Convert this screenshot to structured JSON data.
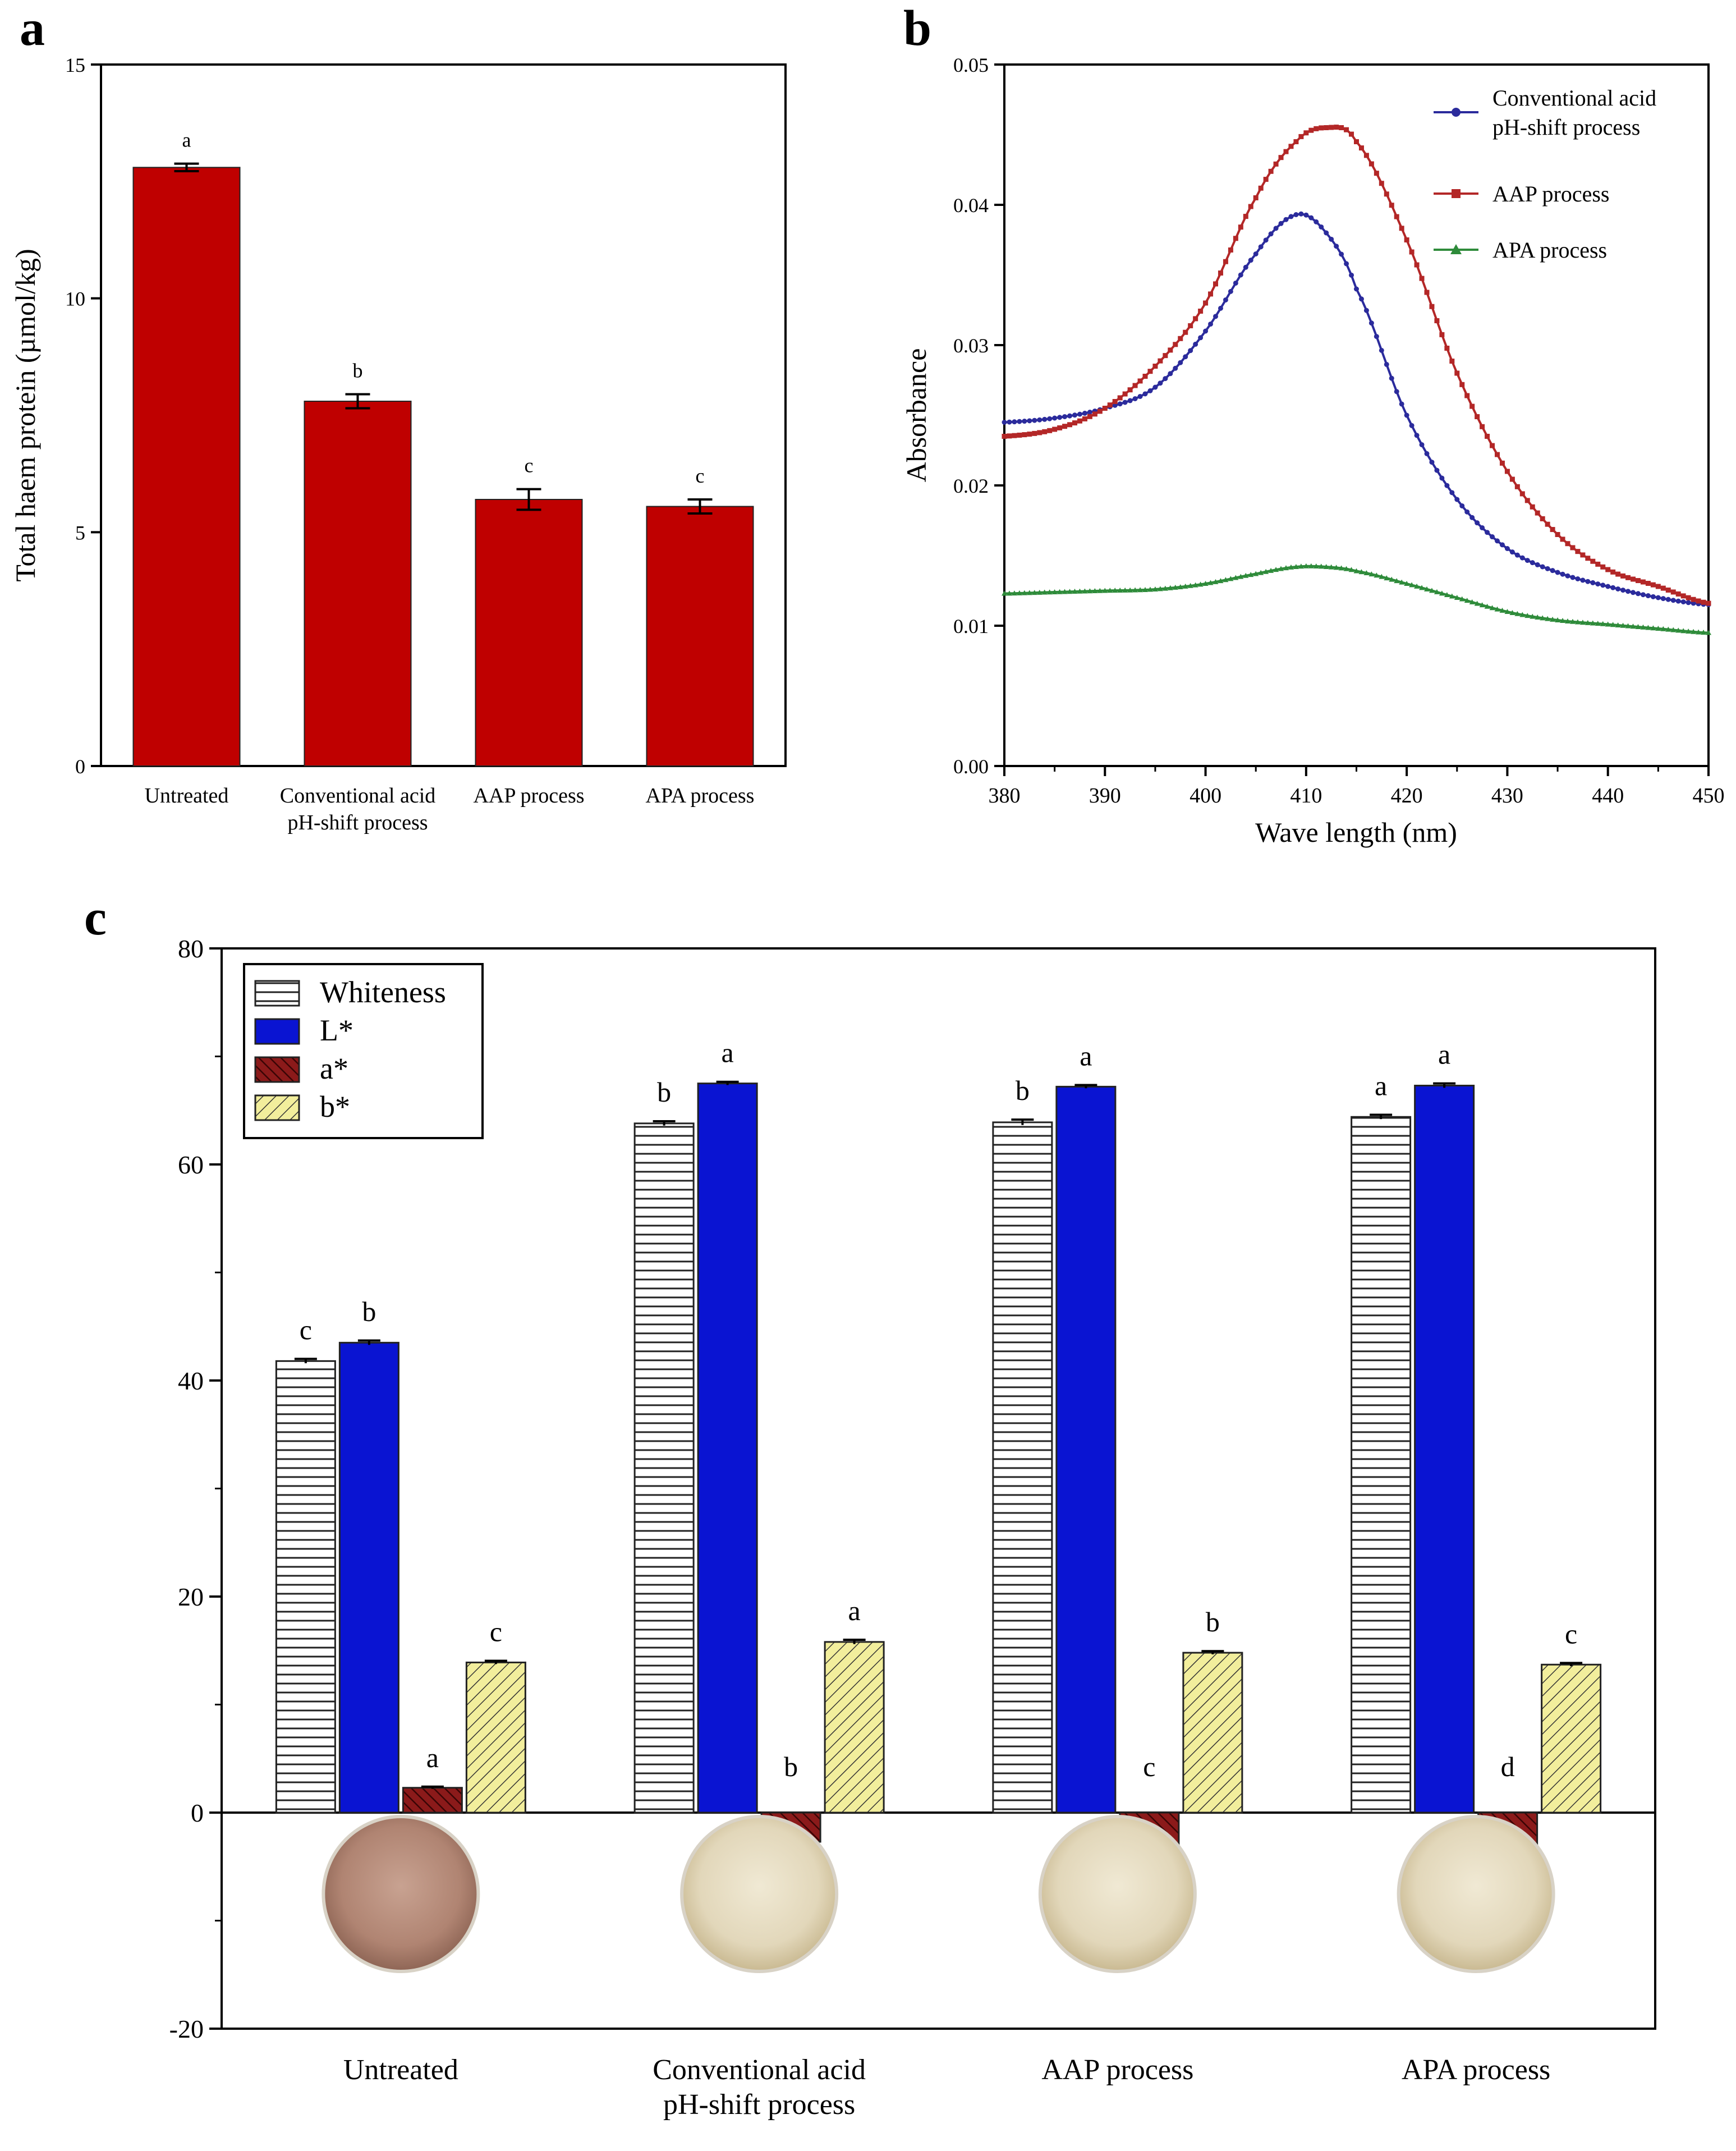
{
  "figure": {
    "panel_labels": [
      "a",
      "b",
      "c"
    ]
  },
  "colors": {
    "red_bar": "#bf0000",
    "blue_line": "#2b2b9c",
    "red_line": "#b32727",
    "green_line": "#2e8b3a",
    "L_bar": "#0a14d2",
    "a_bar": "#8b1a1a",
    "b_bar": "#f2ee9c",
    "sample_untreated": "#b58a78",
    "sample_treated": "#e6dcc2"
  },
  "chart_data": [
    {
      "id": "a",
      "type": "bar",
      "ylabel": "Total haem protein (µmol/kg)",
      "ylim": [
        0,
        15
      ],
      "yticks": [
        0,
        5,
        10,
        15
      ],
      "categories": [
        "Untreated",
        "Conventional acid pH-shift process",
        "AAP process",
        "APA process"
      ],
      "category_lines": [
        [
          "Untreated"
        ],
        [
          "Conventional acid",
          "pH-shift process"
        ],
        [
          "AAP process"
        ],
        [
          "APA process"
        ]
      ],
      "values": [
        12.8,
        7.8,
        5.7,
        5.55
      ],
      "errors": [
        0.08,
        0.15,
        0.22,
        0.15
      ],
      "significance": [
        "a",
        "b",
        "c",
        "c"
      ]
    },
    {
      "id": "b",
      "type": "line",
      "xlabel": "Wave length (nm)",
      "ylabel": "Absorbance",
      "xlim": [
        380,
        450
      ],
      "ylim": [
        0,
        0.05
      ],
      "xticks": [
        380,
        390,
        400,
        410,
        420,
        430,
        440,
        450
      ],
      "yticks": [
        "0.00",
        "0.01",
        "0.02",
        "0.03",
        "0.04",
        "0.05"
      ],
      "legend_position": "top-right",
      "x": [
        380,
        385,
        390,
        395,
        400,
        405,
        409,
        412,
        415,
        420,
        425,
        430,
        435,
        440,
        445,
        450
      ],
      "series": [
        {
          "name": "Conventional acid pH-shift process",
          "legend_lines": [
            "Conventional acid",
            "pH-shift process"
          ],
          "color_key": "blue_line",
          "values": [
            0.0245,
            0.0248,
            0.0255,
            0.027,
            0.031,
            0.0365,
            0.0393,
            0.038,
            0.034,
            0.025,
            0.019,
            0.0155,
            0.0138,
            0.0128,
            0.012,
            0.0115
          ]
        },
        {
          "name": "AAP process",
          "legend_lines": [
            "AAP process"
          ],
          "color_key": "red_line",
          "values": [
            0.0235,
            0.024,
            0.0255,
            0.0285,
            0.033,
            0.0405,
            0.0445,
            0.0455,
            0.0445,
            0.0375,
            0.028,
            0.021,
            0.0165,
            0.014,
            0.0128,
            0.0116
          ]
        },
        {
          "name": "APA process",
          "legend_lines": [
            "APA process"
          ],
          "color_key": "green_line",
          "values": [
            0.0123,
            0.0124,
            0.0125,
            0.0126,
            0.013,
            0.0137,
            0.0142,
            0.0142,
            0.0139,
            0.013,
            0.012,
            0.011,
            0.0104,
            0.0101,
            0.0098,
            0.0095
          ]
        }
      ]
    },
    {
      "id": "c",
      "type": "bar",
      "ylim": [
        -20,
        80
      ],
      "yticks": [
        -20,
        0,
        20,
        40,
        60,
        80
      ],
      "categories": [
        "Untreated",
        "Conventional acid pH-shift process",
        "AAP process",
        "APA process"
      ],
      "category_lines": [
        [
          "Untreated"
        ],
        [
          "Conventional acid",
          "pH-shift process"
        ],
        [
          "AAP process"
        ],
        [
          "APA process"
        ]
      ],
      "legend_position": "top-left",
      "series": [
        {
          "name": "Whiteness",
          "fill": "horizontal-stripes",
          "values": [
            41.8,
            63.8,
            63.9,
            64.4
          ],
          "errors": [
            0.2,
            0.2,
            0.25,
            0.2
          ],
          "significance": [
            "c",
            "b",
            "b",
            "a"
          ]
        },
        {
          "name": "L*",
          "fill": "solid-blue",
          "values": [
            43.5,
            67.5,
            67.2,
            67.3
          ],
          "errors": [
            0.2,
            0.15,
            0.15,
            0.2
          ],
          "significance": [
            "b",
            "a",
            "a",
            "a"
          ]
        },
        {
          "name": "a*",
          "fill": "hatch-red",
          "values": [
            2.3,
            -2.7,
            -3.2,
            -3.3
          ],
          "errors": [
            0.1,
            0.1,
            0.1,
            0.1
          ],
          "significance": [
            "a",
            "b",
            "c",
            "d"
          ]
        },
        {
          "name": "b*",
          "fill": "hatch-yellow",
          "values": [
            13.9,
            15.8,
            14.8,
            13.7
          ],
          "errors": [
            0.15,
            0.2,
            0.15,
            0.15
          ],
          "significance": [
            "c",
            "a",
            "b",
            "c"
          ]
        }
      ],
      "sample_photos": [
        "sample_untreated",
        "sample_treated",
        "sample_treated",
        "sample_treated"
      ]
    }
  ]
}
